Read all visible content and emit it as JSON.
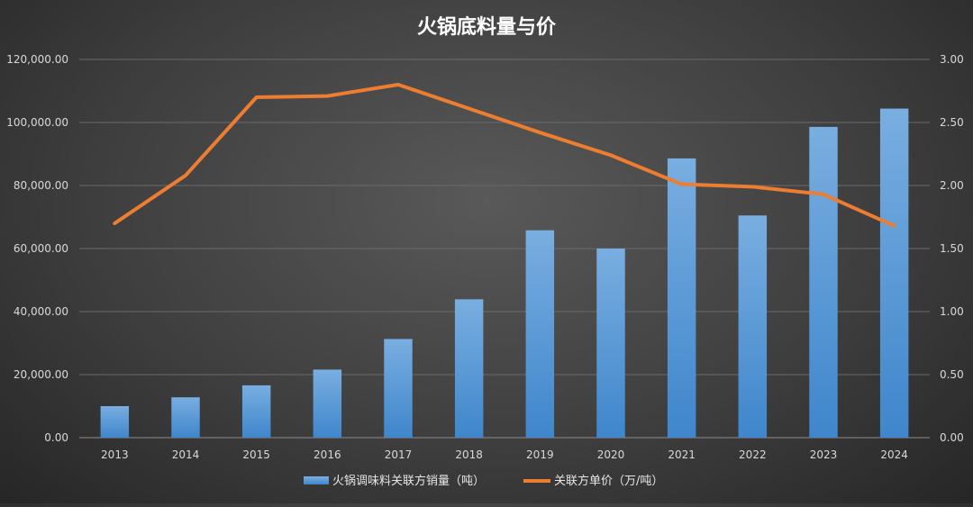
{
  "chart_data": {
    "type": "bar",
    "title": "火锅底料量与价",
    "categories": [
      "2013",
      "2014",
      "2015",
      "2016",
      "2017",
      "2018",
      "2019",
      "2020",
      "2021",
      "2022",
      "2023",
      "2024"
    ],
    "series": [
      {
        "name": "火锅调味料关联方销量（吨）",
        "type": "bar",
        "axis": "left",
        "color": "#5b9bd5",
        "values": [
          10000,
          12800,
          16600,
          21600,
          31300,
          43900,
          65800,
          60000,
          88600,
          70500,
          98600,
          104400
        ]
      },
      {
        "name": "关联方单价（万/吨）",
        "type": "line",
        "axis": "right",
        "color": "#ed7d31",
        "values": [
          1.7,
          2.08,
          2.7,
          2.71,
          2.8,
          2.61,
          2.42,
          2.24,
          2.01,
          1.99,
          1.93,
          1.68
        ]
      }
    ],
    "left_axis": {
      "ylim": [
        0,
        120000
      ],
      "ticks": [
        "0.00",
        "20,000.00",
        "40,000.00",
        "60,000.00",
        "80,000.00",
        "100,000.00",
        "120,000.00"
      ]
    },
    "right_axis": {
      "ylim": [
        0,
        3
      ],
      "ticks": [
        "0.00",
        "0.50",
        "1.00",
        "1.50",
        "2.00",
        "2.50",
        "3.00"
      ]
    },
    "grid": true,
    "legend_position": "bottom"
  }
}
